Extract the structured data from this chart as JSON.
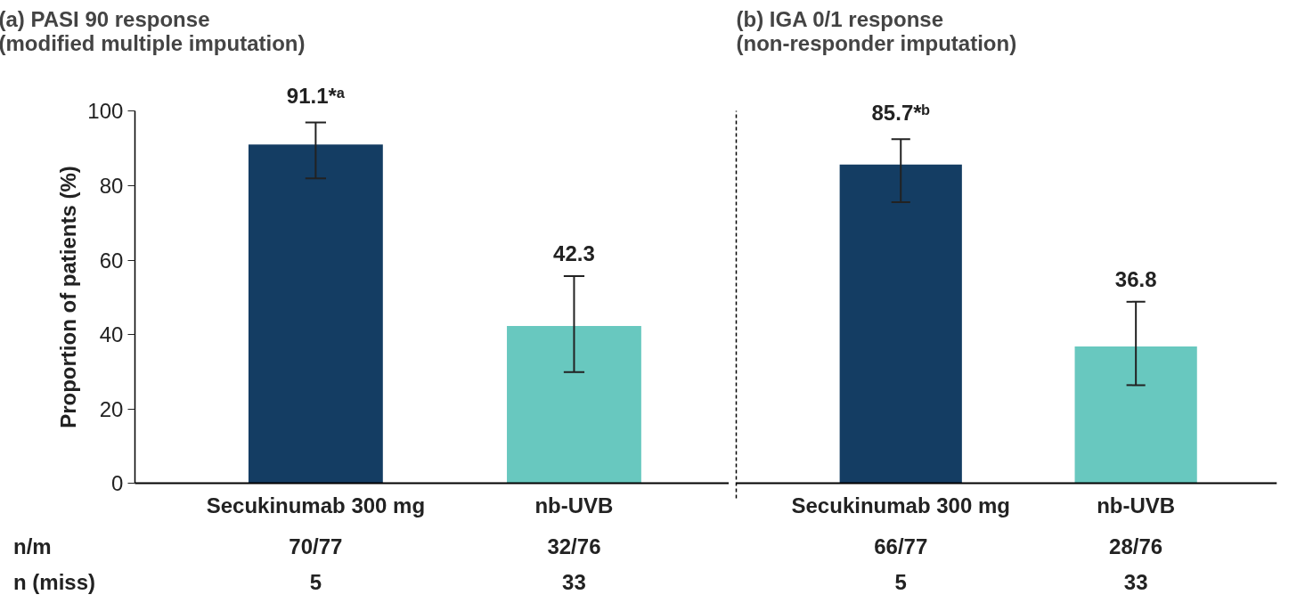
{
  "chart_data": [
    {
      "type": "bar",
      "title": "(a) PASI 90 response\n      (modified multiple imputation)",
      "ylabel": "Proportion of patients (%)",
      "categories": [
        "Secukinumab 300 mg",
        "nb-UVB"
      ],
      "values": [
        91.1,
        42.3
      ],
      "colors": [
        "#143d63",
        "#68c8bf"
      ],
      "errors": [
        [
          82,
          97
        ],
        [
          29.9,
          55.7
        ]
      ],
      "value_labels": [
        "91.1*ᵃ",
        "42.3"
      ],
      "ylim": [
        0,
        100
      ],
      "yticks": [
        0,
        20,
        40,
        60,
        80,
        100
      ],
      "grid": false,
      "annotations": [
        "n/m",
        "70/77",
        "32/76",
        "n (miss)",
        "5",
        "33"
      ]
    },
    {
      "type": "bar",
      "title": "(b) IGA 0/1 response\n      (non-responder imputation)",
      "categories": [
        "Secukinumab 300 mg",
        "nb-UVB"
      ],
      "values": [
        85.7,
        36.8
      ],
      "colors": [
        "#143d63",
        "#68c8bf"
      ],
      "errors": [
        [
          75.6,
          92.5
        ],
        [
          26.4,
          48.8
        ]
      ],
      "value_labels": [
        "85.7*ᵇ",
        "36.8"
      ],
      "ylim": [
        0,
        100
      ],
      "yticks": [
        0,
        20,
        40,
        60,
        80,
        100
      ],
      "tick_labels": "x",
      "grid": false,
      "annotations": [
        "66/77",
        "28/76",
        "5",
        "33"
      ]
    }
  ]
}
